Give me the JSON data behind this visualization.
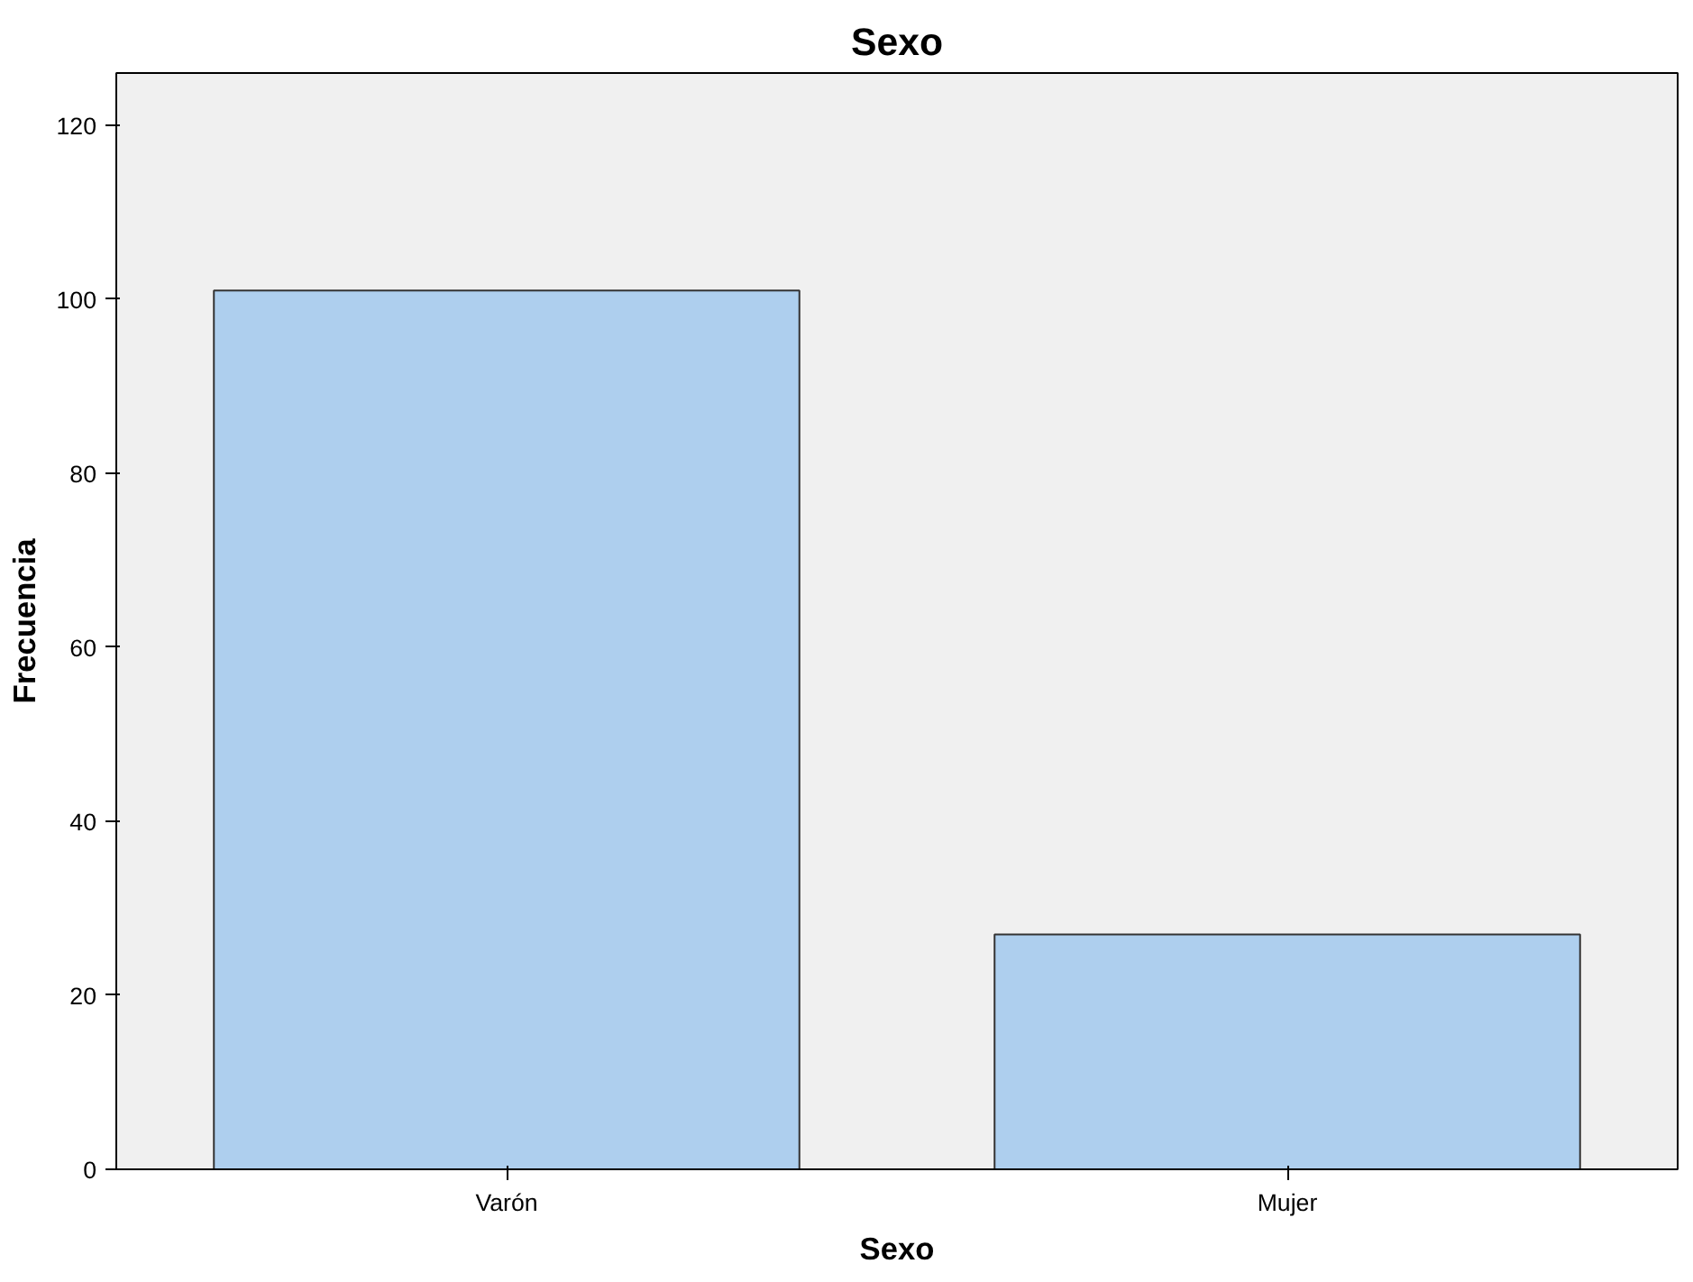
{
  "chart_data": {
    "type": "bar",
    "title": "Sexo",
    "xlabel": "Sexo",
    "ylabel": "Frecuencia",
    "categories": [
      "Varón",
      "Mujer"
    ],
    "values": [
      101,
      27
    ],
    "color": "#aecfee",
    "ylim": [
      0,
      126
    ],
    "yticks": [
      0,
      20,
      40,
      60,
      80,
      100,
      120
    ],
    "grid": false
  }
}
